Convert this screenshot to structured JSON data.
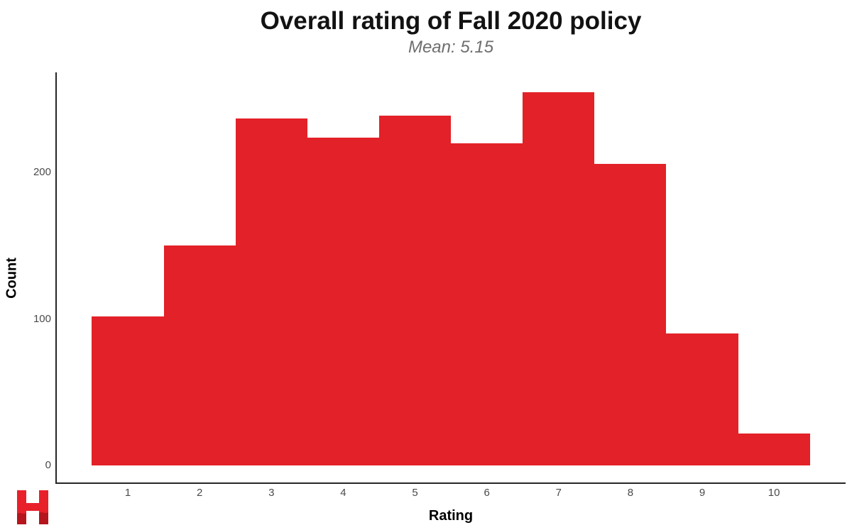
{
  "chart_data": {
    "type": "bar",
    "chart_kind": "histogram",
    "title": "Overall rating of Fall 2020 policy",
    "subtitle": "Mean: 5.15",
    "xlabel": "Rating",
    "ylabel": "Count",
    "categories": [
      1,
      2,
      3,
      4,
      5,
      6,
      7,
      8,
      9,
      10
    ],
    "values": [
      102,
      150,
      237,
      224,
      239,
      220,
      255,
      206,
      90,
      22
    ],
    "x_tick_labels": [
      "1",
      "2",
      "3",
      "4",
      "5",
      "6",
      "7",
      "8",
      "9",
      "10"
    ],
    "y_tick_values": [
      0,
      100,
      200
    ],
    "xlim": [
      0,
      11
    ],
    "ylim": [
      0,
      268
    ],
    "bin_width": 1,
    "bar_gap": 0,
    "grid": false,
    "legend": "none",
    "colors": {
      "bar": "#e32128",
      "axis": "#262626",
      "tick_label": "#4a4a4a",
      "title": "#121212",
      "subtitle": "#6e6e6e",
      "axis_title": "#000000",
      "background": "#ffffff"
    }
  },
  "branding": {
    "logo_name": "red-h-logo",
    "logo_color_top": "#e8202a",
    "logo_color_bottom": "#b5151d"
  }
}
